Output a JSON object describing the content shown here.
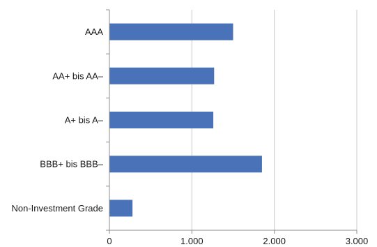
{
  "chart_data": {
    "type": "bar",
    "orientation": "horizontal",
    "categories": [
      "AAA",
      "AA+ bis AA–",
      "A+ bis A–",
      "BBB+ bis BBB–",
      "Non-Investment Grade"
    ],
    "values": [
      1500,
      1270,
      1260,
      1850,
      280
    ],
    "title": "",
    "xlabel": "",
    "ylabel": "",
    "xlim": [
      0,
      3000
    ],
    "xticks": [
      0,
      1000,
      2000,
      3000
    ],
    "xtick_labels": [
      "0",
      "1.000",
      "2.000",
      "3.000"
    ],
    "grid": "vertical",
    "legend": "none",
    "bar_color": "#4a72b8",
    "grid_color": "#c8c8c8",
    "axis_color": "#8c8c8c"
  }
}
